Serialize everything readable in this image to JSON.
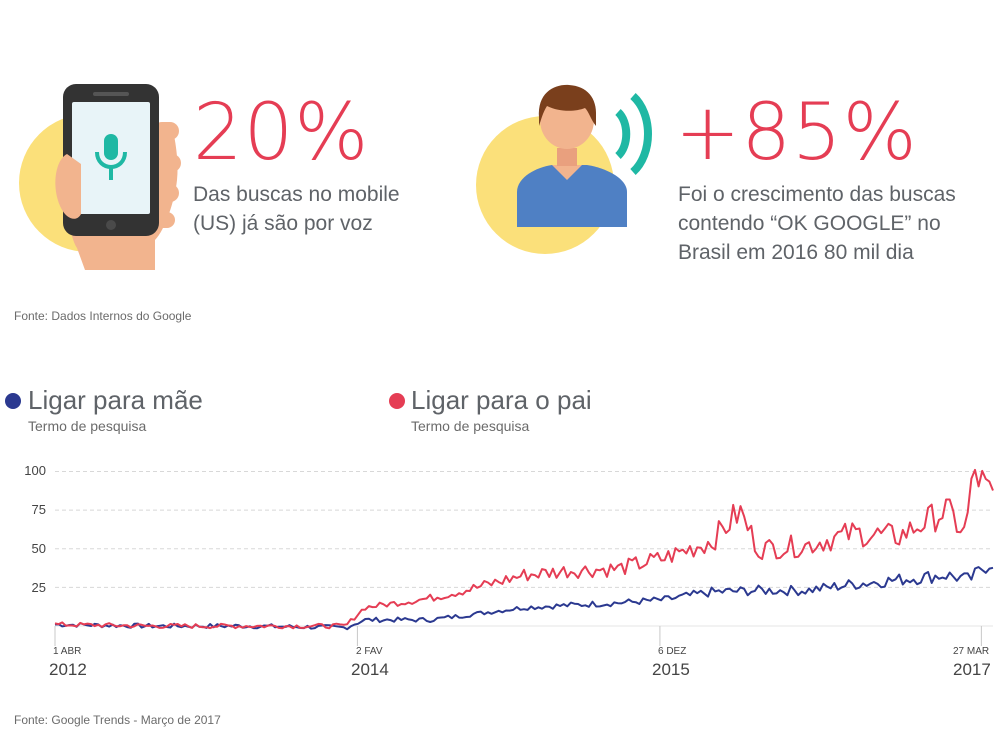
{
  "stats": [
    {
      "value": "20%",
      "desc_lines": [
        "Das buscas no mobile",
        "(US) já são por voz"
      ]
    },
    {
      "value": "+85%",
      "desc_lines": [
        "Foi o crescimento das buscas",
        "contendo “OK GOOGLE” no",
        "Brasil em 2016 80 mil dia"
      ]
    }
  ],
  "source_top": "Fonte: Dados Internos do Google",
  "source_bottom": "Fonte: Google Trends - Março de 2017",
  "colors": {
    "accent_red": "#e53d54",
    "accent_blue": "#2b3990",
    "yellow": "#fbe07a",
    "teal": "#1fb8a4",
    "shirt_blue": "#4f80c4"
  },
  "icons": [
    "smartphone-icon",
    "microphone-icon",
    "hand-icon",
    "person-icon",
    "sound-waves-icon"
  ],
  "chart_data": {
    "type": "line",
    "x_ticks": [
      {
        "day": "1 ABR",
        "year": "2012"
      },
      {
        "day": "2 FAV",
        "year": "2014"
      },
      {
        "day": "6 DEZ",
        "year": "2015"
      },
      {
        "day": "27 MAR",
        "year": "2017"
      }
    ],
    "y_ticks": [
      "100",
      "75",
      "50",
      "25"
    ],
    "ylim": [
      0,
      100
    ],
    "grid": true,
    "legend_position": "top-left",
    "series": [
      {
        "name": "Ligar para mãe",
        "subtitle": "Termo de pesquisa",
        "color": "#2b3990",
        "keypoints": [
          [
            0,
            1
          ],
          [
            0.1,
            0
          ],
          [
            0.2,
            0
          ],
          [
            0.31,
            -1
          ],
          [
            0.33,
            4
          ],
          [
            0.4,
            4
          ],
          [
            0.5,
            12
          ],
          [
            0.6,
            15
          ],
          [
            0.65,
            17
          ],
          [
            0.7,
            22
          ],
          [
            0.75,
            23
          ],
          [
            0.8,
            23
          ],
          [
            0.85,
            27
          ],
          [
            0.9,
            30
          ],
          [
            0.95,
            33
          ],
          [
            0.975,
            30
          ],
          [
            0.99,
            38
          ],
          [
            1,
            42
          ]
        ]
      },
      {
        "name": "Ligar para o pai",
        "subtitle": "Termo de pesquisa",
        "color": "#e53d54",
        "keypoints": [
          [
            0,
            1
          ],
          [
            0.1,
            0
          ],
          [
            0.2,
            0
          ],
          [
            0.31,
            0
          ],
          [
            0.33,
            12
          ],
          [
            0.4,
            18
          ],
          [
            0.45,
            25
          ],
          [
            0.5,
            33
          ],
          [
            0.55,
            36
          ],
          [
            0.6,
            37
          ],
          [
            0.65,
            44
          ],
          [
            0.7,
            55
          ],
          [
            0.73,
            74
          ],
          [
            0.75,
            50
          ],
          [
            0.8,
            52
          ],
          [
            0.85,
            60
          ],
          [
            0.9,
            58
          ],
          [
            0.95,
            75
          ],
          [
            0.97,
            60
          ],
          [
            0.98,
            100
          ],
          [
            1,
            82
          ]
        ]
      }
    ]
  }
}
